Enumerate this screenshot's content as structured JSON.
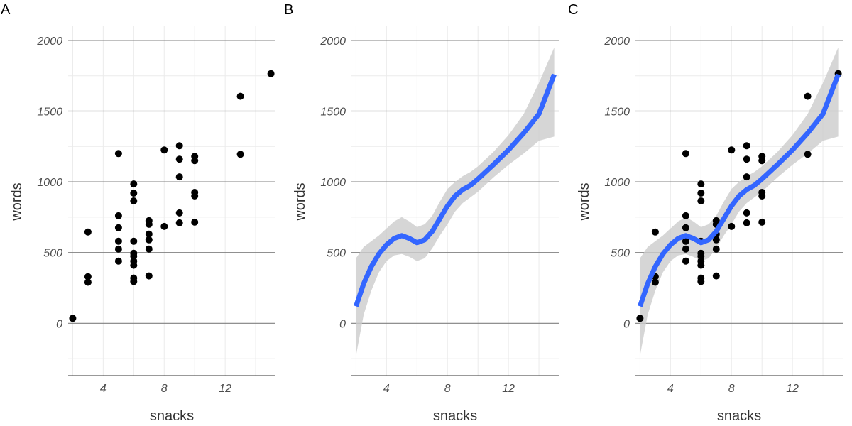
{
  "chart_data": [
    {
      "type": "scatter",
      "panel_label": "A",
      "xlabel": "snacks",
      "ylabel": "words",
      "xlim": [
        1.7,
        15.3
      ],
      "ylim": [
        -370,
        2100
      ],
      "x_ticks": [
        4,
        8,
        12
      ],
      "y_ticks": [
        0,
        500,
        1000,
        1500,
        2000
      ],
      "grid": true,
      "show_points": true,
      "show_smooth": false
    },
    {
      "type": "line",
      "panel_label": "B",
      "xlabel": "snacks",
      "ylabel": "words",
      "xlim": [
        1.7,
        15.3
      ],
      "ylim": [
        -370,
        2100
      ],
      "x_ticks": [
        4,
        8,
        12
      ],
      "y_ticks": [
        0,
        500,
        1000,
        1500,
        2000
      ],
      "grid": true,
      "show_points": false,
      "show_smooth": true
    },
    {
      "type": "scatter",
      "panel_label": "C",
      "xlabel": "snacks",
      "ylabel": "words",
      "xlim": [
        1.7,
        15.3
      ],
      "ylim": [
        -370,
        2100
      ],
      "x_ticks": [
        4,
        8,
        12
      ],
      "y_ticks": [
        0,
        500,
        1000,
        1500,
        2000
      ],
      "grid": true,
      "show_points": true,
      "show_smooth": true
    }
  ],
  "points": [
    {
      "x": 2,
      "y": 35
    },
    {
      "x": 3,
      "y": 330
    },
    {
      "x": 3,
      "y": 290
    },
    {
      "x": 3,
      "y": 645
    },
    {
      "x": 5,
      "y": 1200
    },
    {
      "x": 5,
      "y": 760
    },
    {
      "x": 5,
      "y": 675
    },
    {
      "x": 5,
      "y": 580
    },
    {
      "x": 5,
      "y": 525
    },
    {
      "x": 5,
      "y": 440
    },
    {
      "x": 6,
      "y": 985
    },
    {
      "x": 6,
      "y": 920
    },
    {
      "x": 6,
      "y": 865
    },
    {
      "x": 6,
      "y": 580
    },
    {
      "x": 6,
      "y": 495
    },
    {
      "x": 6,
      "y": 475
    },
    {
      "x": 6,
      "y": 440
    },
    {
      "x": 6,
      "y": 410
    },
    {
      "x": 6,
      "y": 320
    },
    {
      "x": 6,
      "y": 295
    },
    {
      "x": 7,
      "y": 725
    },
    {
      "x": 7,
      "y": 700
    },
    {
      "x": 7,
      "y": 630
    },
    {
      "x": 7,
      "y": 590
    },
    {
      "x": 7,
      "y": 525
    },
    {
      "x": 7,
      "y": 335
    },
    {
      "x": 8,
      "y": 1225
    },
    {
      "x": 8,
      "y": 685
    },
    {
      "x": 9,
      "y": 1255
    },
    {
      "x": 9,
      "y": 1160
    },
    {
      "x": 9,
      "y": 1035
    },
    {
      "x": 9,
      "y": 780
    },
    {
      "x": 9,
      "y": 710
    },
    {
      "x": 10,
      "y": 1180
    },
    {
      "x": 10,
      "y": 1150
    },
    {
      "x": 10,
      "y": 925
    },
    {
      "x": 10,
      "y": 900
    },
    {
      "x": 10,
      "y": 715
    },
    {
      "x": 13,
      "y": 1605
    },
    {
      "x": 13,
      "y": 1195
    },
    {
      "x": 15,
      "y": 1765
    }
  ],
  "smooth": {
    "color": "#3366ff",
    "band_color": "#cccccc",
    "fit": [
      {
        "x": 2.0,
        "y": 120
      },
      {
        "x": 2.5,
        "y": 280
      },
      {
        "x": 3.0,
        "y": 400
      },
      {
        "x": 3.5,
        "y": 490
      },
      {
        "x": 4.0,
        "y": 555
      },
      {
        "x": 4.5,
        "y": 600
      },
      {
        "x": 5.0,
        "y": 620
      },
      {
        "x": 5.5,
        "y": 600
      },
      {
        "x": 6.0,
        "y": 570
      },
      {
        "x": 6.5,
        "y": 590
      },
      {
        "x": 7.0,
        "y": 650
      },
      {
        "x": 7.5,
        "y": 740
      },
      {
        "x": 8.0,
        "y": 830
      },
      {
        "x": 8.5,
        "y": 900
      },
      {
        "x": 9.0,
        "y": 945
      },
      {
        "x": 9.5,
        "y": 975
      },
      {
        "x": 10.0,
        "y": 1020
      },
      {
        "x": 11.0,
        "y": 1120
      },
      {
        "x": 12.0,
        "y": 1225
      },
      {
        "x": 13.0,
        "y": 1345
      },
      {
        "x": 14.0,
        "y": 1480
      },
      {
        "x": 15.0,
        "y": 1760
      }
    ],
    "band_upper": [
      {
        "x": 2.0,
        "y": 460
      },
      {
        "x": 2.5,
        "y": 540
      },
      {
        "x": 3.0,
        "y": 580
      },
      {
        "x": 3.5,
        "y": 620
      },
      {
        "x": 4.0,
        "y": 670
      },
      {
        "x": 4.5,
        "y": 720
      },
      {
        "x": 5.0,
        "y": 750
      },
      {
        "x": 5.5,
        "y": 720
      },
      {
        "x": 6.0,
        "y": 680
      },
      {
        "x": 6.5,
        "y": 700
      },
      {
        "x": 7.0,
        "y": 760
      },
      {
        "x": 7.5,
        "y": 860
      },
      {
        "x": 8.0,
        "y": 950
      },
      {
        "x": 8.5,
        "y": 1000
      },
      {
        "x": 9.0,
        "y": 1040
      },
      {
        "x": 9.5,
        "y": 1070
      },
      {
        "x": 10.0,
        "y": 1110
      },
      {
        "x": 11.0,
        "y": 1210
      },
      {
        "x": 12.0,
        "y": 1330
      },
      {
        "x": 13.0,
        "y": 1480
      },
      {
        "x": 14.0,
        "y": 1700
      },
      {
        "x": 15.0,
        "y": 1950
      }
    ],
    "band_lower": [
      {
        "x": 2.0,
        "y": -230
      },
      {
        "x": 2.5,
        "y": 60
      },
      {
        "x": 3.0,
        "y": 230
      },
      {
        "x": 3.5,
        "y": 360
      },
      {
        "x": 4.0,
        "y": 440
      },
      {
        "x": 4.5,
        "y": 480
      },
      {
        "x": 5.0,
        "y": 490
      },
      {
        "x": 5.5,
        "y": 470
      },
      {
        "x": 6.0,
        "y": 440
      },
      {
        "x": 6.5,
        "y": 460
      },
      {
        "x": 7.0,
        "y": 530
      },
      {
        "x": 7.5,
        "y": 620
      },
      {
        "x": 8.0,
        "y": 700
      },
      {
        "x": 8.5,
        "y": 790
      },
      {
        "x": 9.0,
        "y": 850
      },
      {
        "x": 9.5,
        "y": 890
      },
      {
        "x": 10.0,
        "y": 930
      },
      {
        "x": 11.0,
        "y": 1030
      },
      {
        "x": 12.0,
        "y": 1120
      },
      {
        "x": 13.0,
        "y": 1200
      },
      {
        "x": 14.0,
        "y": 1290
      },
      {
        "x": 15.0,
        "y": 1320
      }
    ]
  }
}
